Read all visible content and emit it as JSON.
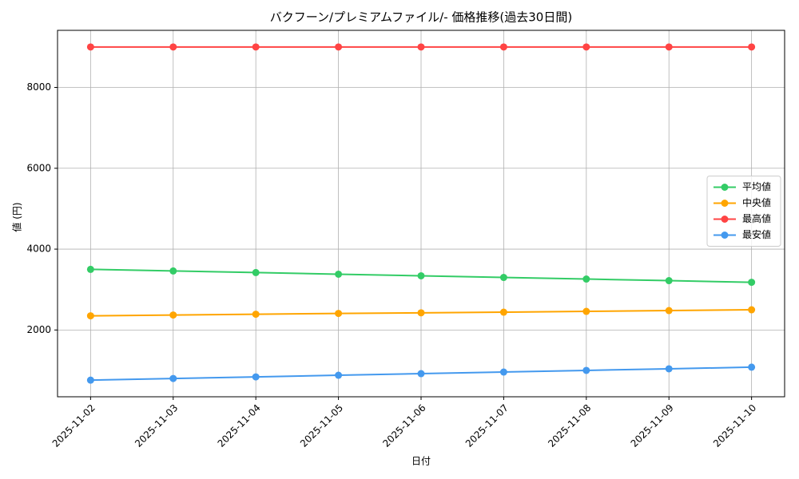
{
  "chart_data": {
    "type": "line",
    "title": "バクフーン/プレミアムファイル/- 価格推移(過去30日間)",
    "xlabel": "日付",
    "ylabel": "値 (円)",
    "categories": [
      "2025-11-02",
      "2025-11-03",
      "2025-11-04",
      "2025-11-05",
      "2025-11-06",
      "2025-11-07",
      "2025-11-08",
      "2025-11-09",
      "2025-11-10"
    ],
    "series": [
      {
        "name": "平均値",
        "color": "#33cc66",
        "values": [
          3500,
          3460,
          3420,
          3380,
          3340,
          3300,
          3260,
          3220,
          3180
        ]
      },
      {
        "name": "中央値",
        "color": "#ffa500",
        "values": [
          2350,
          2370,
          2390,
          2410,
          2425,
          2440,
          2460,
          2480,
          2500
        ]
      },
      {
        "name": "最高値",
        "color": "#ff4444",
        "values": [
          9000,
          9000,
          9000,
          9000,
          9000,
          9000,
          9000,
          9000,
          9000
        ]
      },
      {
        "name": "最安値",
        "color": "#4499ee",
        "values": [
          760,
          800,
          840,
          880,
          920,
          960,
          1000,
          1040,
          1080
        ]
      }
    ],
    "ylim": [
      348,
      9412
    ],
    "yticks": [
      2000,
      4000,
      6000,
      8000
    ],
    "grid": true,
    "legend": "right"
  }
}
